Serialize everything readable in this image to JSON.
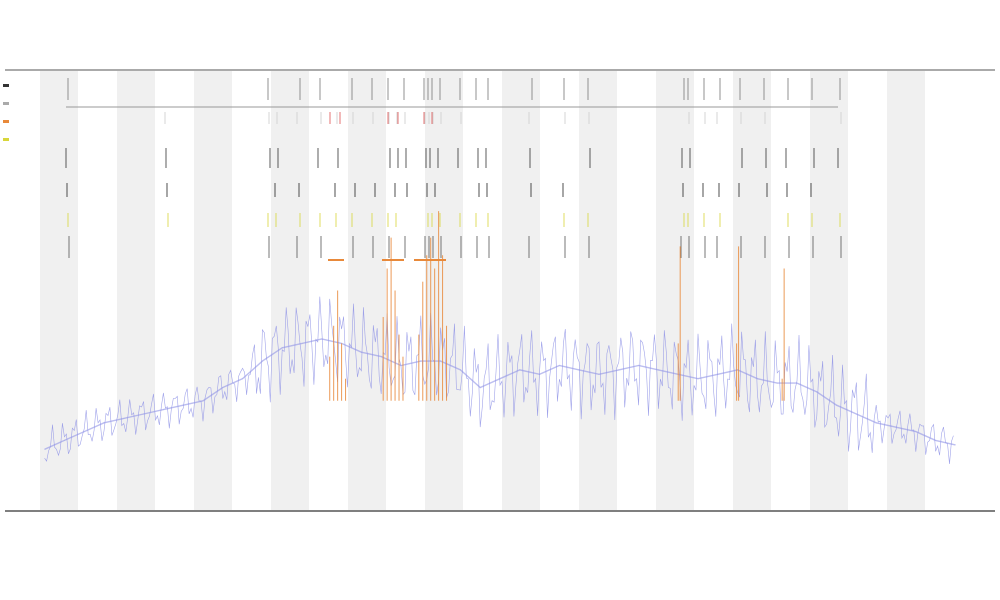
{
  "chart_data": {
    "type": "line",
    "title": "",
    "subtitle_1": "",
    "subtitle_2": "",
    "xlabel": "",
    "ylabel": "",
    "legend_placement": "top-left",
    "legend_entries": [
      "",
      "",
      "",
      ""
    ],
    "band_stripes": true,
    "xlim": [
      0,
      1000
    ],
    "ylim": [
      0,
      1
    ],
    "series": [
      {
        "color": "#8f93e6",
        "x": [
          40,
          60,
          80,
          100,
          120,
          140,
          160,
          180,
          200,
          220,
          240,
          260,
          280,
          300,
          320,
          340,
          360,
          380,
          400,
          420,
          440,
          460,
          480,
          500,
          520,
          540,
          560,
          580,
          600,
          620,
          640,
          660,
          680,
          700,
          720,
          740,
          760,
          780,
          800,
          820,
          840,
          860,
          880,
          900,
          920,
          940,
          960
        ],
        "values": [
          0.14,
          0.16,
          0.18,
          0.2,
          0.21,
          0.22,
          0.23,
          0.24,
          0.25,
          0.28,
          0.3,
          0.34,
          0.37,
          0.38,
          0.39,
          0.38,
          0.36,
          0.35,
          0.33,
          0.34,
          0.34,
          0.32,
          0.28,
          0.3,
          0.32,
          0.31,
          0.33,
          0.32,
          0.31,
          0.32,
          0.33,
          0.32,
          0.31,
          0.3,
          0.31,
          0.32,
          0.3,
          0.29,
          0.29,
          0.27,
          0.24,
          0.22,
          0.2,
          0.19,
          0.18,
          0.16,
          0.15
        ]
      },
      {
        "color": "#e8893a",
        "x": [
          328,
          332,
          336,
          340,
          344,
          382,
          386,
          390,
          394,
          398,
          402,
          418,
          422,
          426,
          430,
          434,
          438,
          442,
          446,
          680,
          682,
          739,
          741,
          785,
          787
        ],
        "values": [
          0.35,
          0.42,
          0.5,
          0.38,
          0.3,
          0.44,
          0.55,
          0.62,
          0.5,
          0.4,
          0.35,
          0.4,
          0.52,
          0.58,
          0.62,
          0.55,
          0.68,
          0.58,
          0.42,
          0.38,
          0.6,
          0.38,
          0.6,
          0.3,
          0.55
        ]
      }
    ],
    "x_tick_labels": [],
    "colors": {
      "stripe": "#f0f0f0",
      "axis": "#333333",
      "coverage": "#8f93e6",
      "highlight": "#e8893a",
      "red": "#e05050",
      "yellow": "#d8d63a"
    }
  }
}
